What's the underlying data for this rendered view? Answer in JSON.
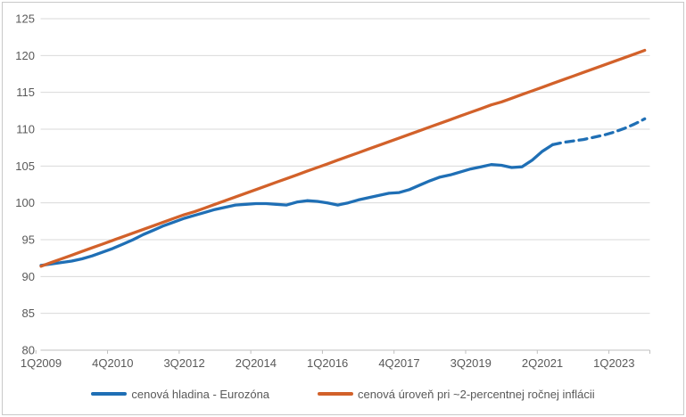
{
  "colors": {
    "series_eurozone": "#1f6fb5",
    "series_inflation_path": "#d2612a",
    "axis_text": "#595959",
    "gridline": "#d9d9d9",
    "axis_line": "#bfbfbf",
    "frame_border": "#c9c9c9"
  },
  "legend": {
    "item1": "cenová hladina - Eurozóna",
    "item2": "cenová úroveň pri ~2-percentnej ročnej inflácii"
  },
  "chart_data": {
    "type": "line",
    "title": "",
    "xlabel": "",
    "ylabel": "",
    "ylim": [
      80,
      125
    ],
    "y_ticks": [
      80,
      85,
      90,
      95,
      100,
      105,
      110,
      115,
      120,
      125
    ],
    "grid": "horizontal",
    "legend_position": "bottom",
    "n_points": 60,
    "x_first_period": "1Q2009",
    "x_last_period": "4Q2023",
    "x_tick_labels": [
      "1Q2009",
      "4Q2010",
      "3Q2012",
      "2Q2014",
      "1Q2016",
      "4Q2017",
      "3Q2019",
      "2Q2021",
      "1Q2023"
    ],
    "x_tick_indices": [
      0,
      7,
      14,
      21,
      28,
      35,
      42,
      49,
      56
    ],
    "series": [
      {
        "name": "cenová hladina - Eurozóna",
        "color": "#1f6fb5",
        "style": "solid_then_dashed",
        "dashed_from_index": 50,
        "dashed_note": "dashed section = projection from 3Q2021 onward",
        "values": [
          91.5,
          91.7,
          91.9,
          92.1,
          92.4,
          92.8,
          93.3,
          93.8,
          94.4,
          95.0,
          95.7,
          96.3,
          96.9,
          97.4,
          97.9,
          98.3,
          98.7,
          99.1,
          99.4,
          99.7,
          99.8,
          99.9,
          99.9,
          99.8,
          99.7,
          100.1,
          100.3,
          100.2,
          100.0,
          99.7,
          100.0,
          100.4,
          100.7,
          101.0,
          101.3,
          101.4,
          101.8,
          102.4,
          103.0,
          103.5,
          103.8,
          104.2,
          104.6,
          104.9,
          105.2,
          105.1,
          104.8,
          104.9,
          105.8,
          107.0,
          107.9,
          108.2,
          108.4,
          108.6,
          108.9,
          109.2,
          109.6,
          110.1,
          110.7,
          111.4
        ]
      },
      {
        "name": "cenová úroveň pri ~2-percentnej ročnej inflácii",
        "color": "#d2612a",
        "style": "solid",
        "values": [
          91.4,
          91.9,
          92.4,
          92.9,
          93.4,
          93.9,
          94.4,
          94.9,
          95.4,
          95.9,
          96.4,
          96.9,
          97.4,
          97.9,
          98.4,
          98.8,
          99.3,
          99.8,
          100.3,
          100.8,
          101.3,
          101.8,
          102.3,
          102.8,
          103.3,
          103.8,
          104.3,
          104.8,
          105.3,
          105.8,
          106.3,
          106.8,
          107.3,
          107.8,
          108.3,
          108.8,
          109.3,
          109.8,
          110.3,
          110.8,
          111.3,
          111.8,
          112.3,
          112.8,
          113.3,
          113.7,
          114.2,
          114.7,
          115.2,
          115.7,
          116.2,
          116.7,
          117.2,
          117.7,
          118.2,
          118.7,
          119.2,
          119.7,
          120.2,
          120.7
        ]
      }
    ]
  }
}
